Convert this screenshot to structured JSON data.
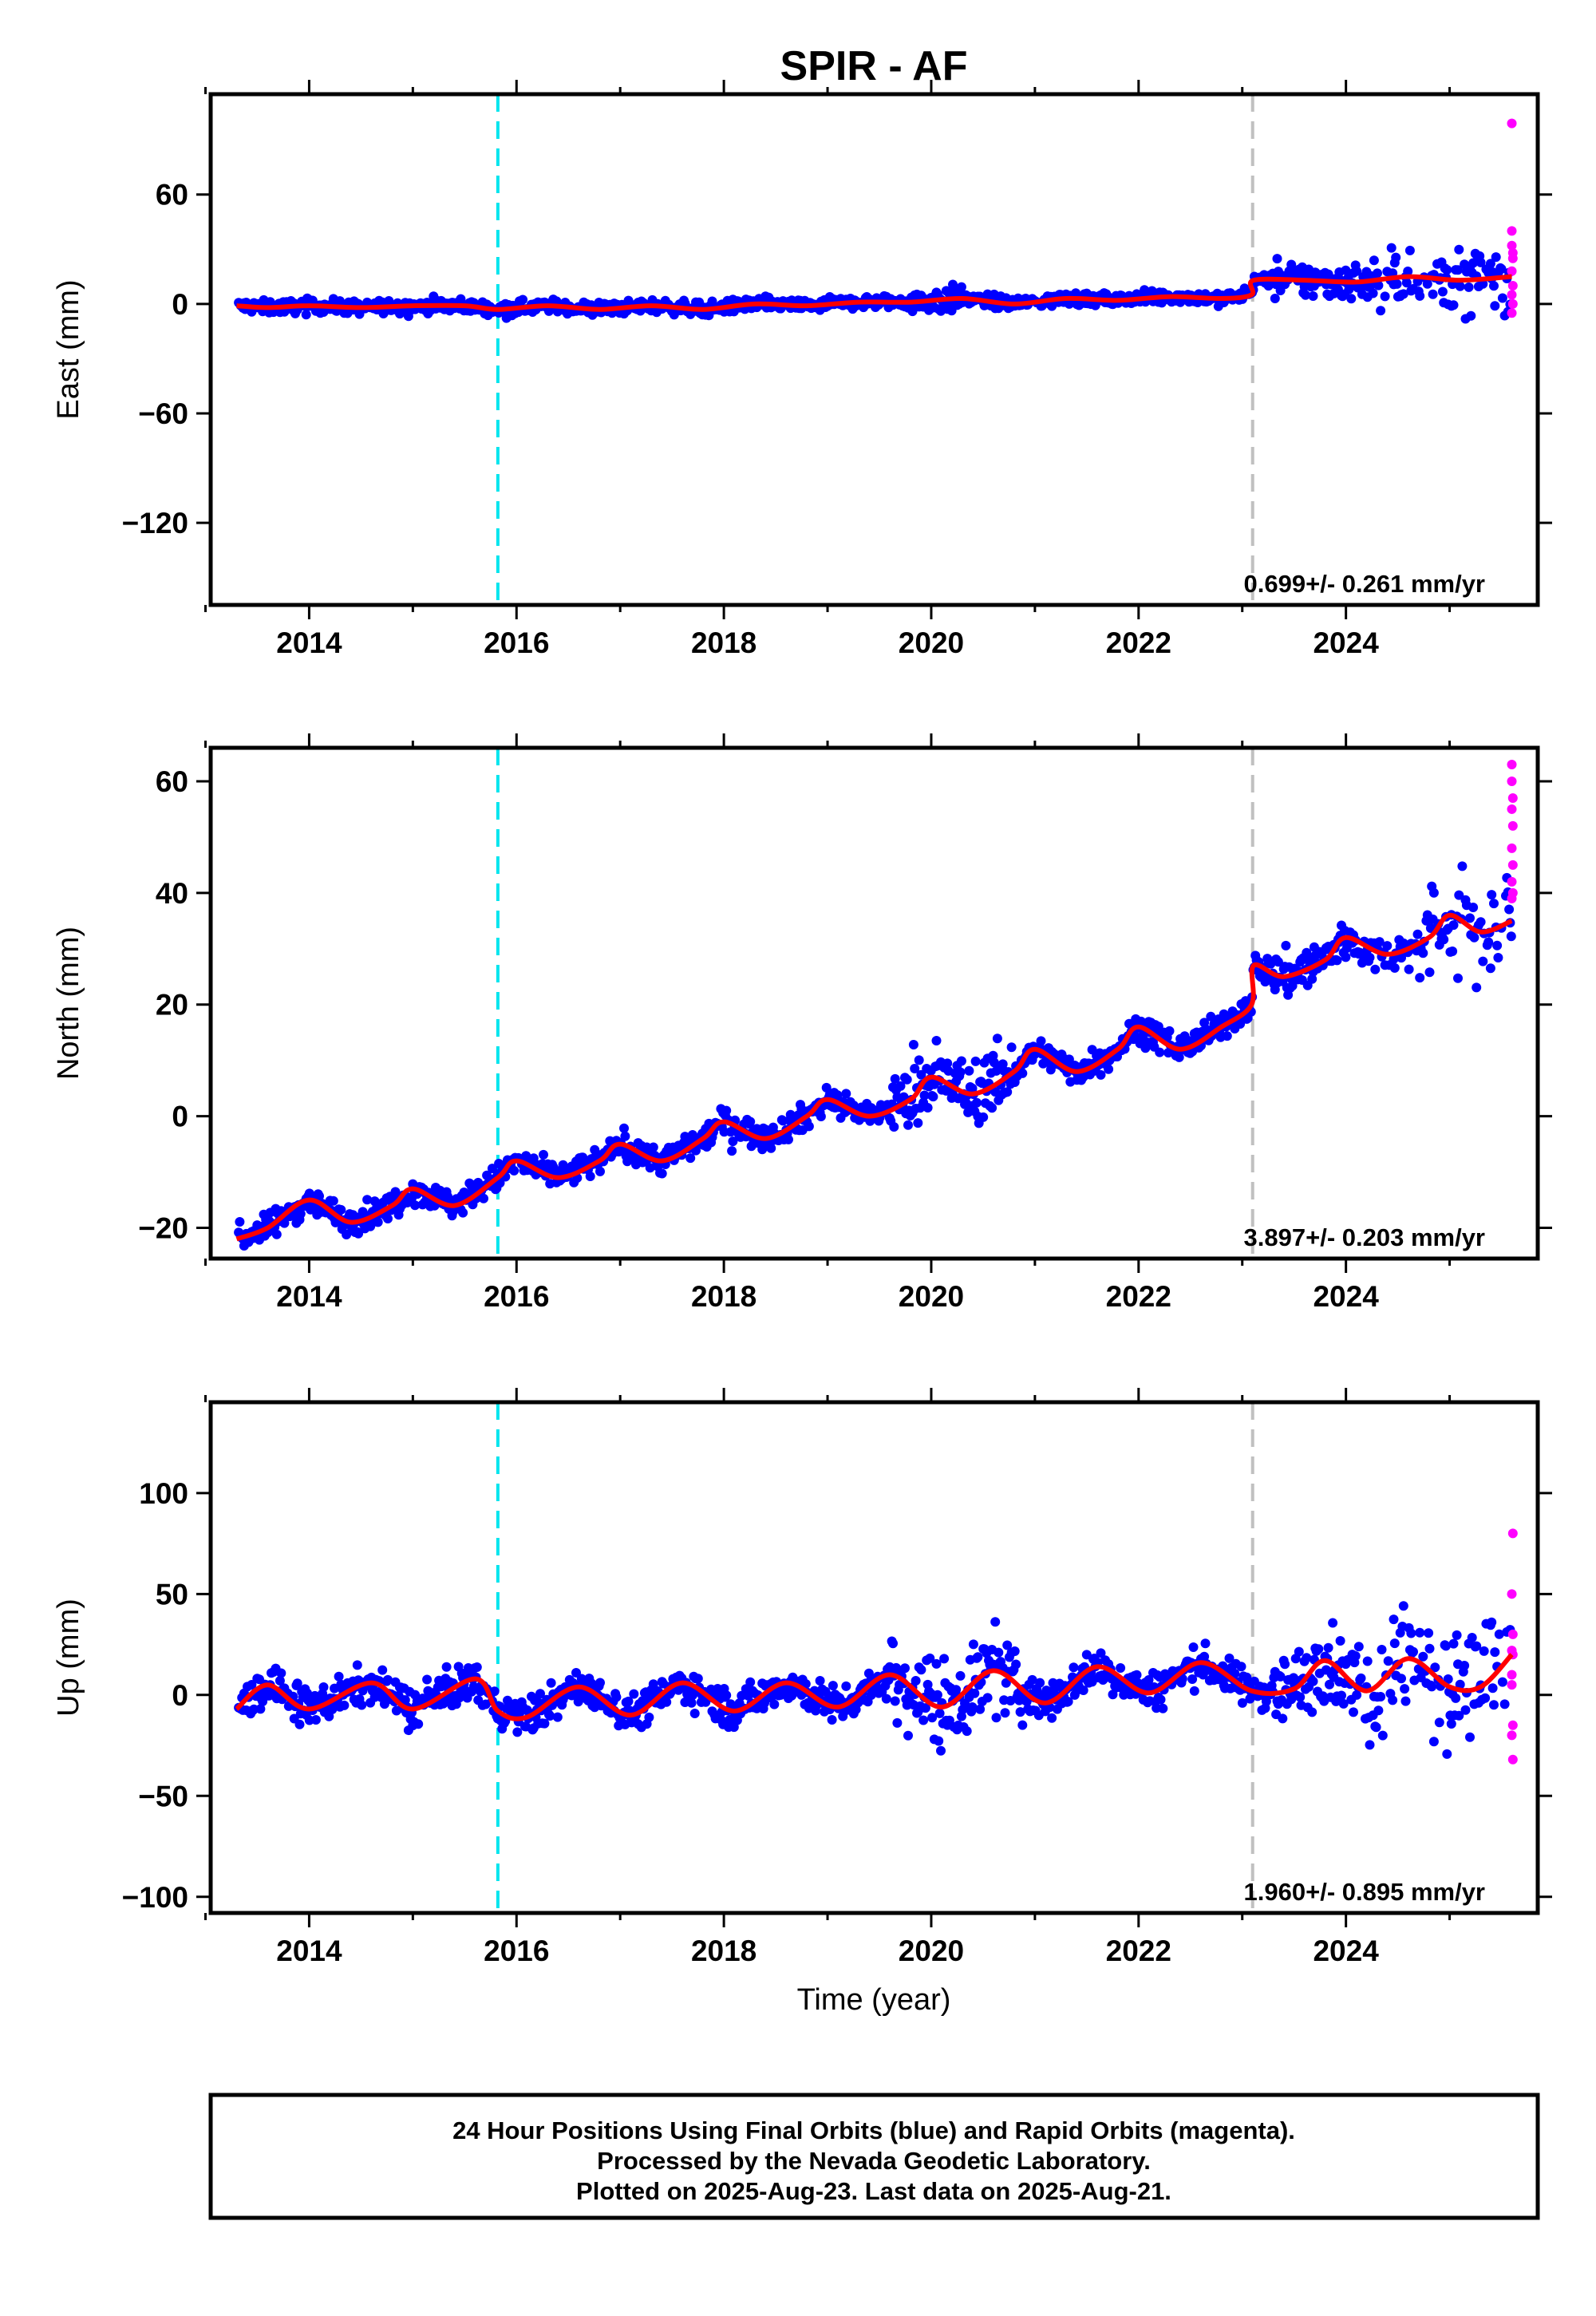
{
  "title": "SPIR - AF",
  "xlabel": "Time (year)",
  "colors": {
    "final": "#0000ff",
    "rapid": "#ff00ff",
    "model": "#ff0000",
    "event_antenna": "#00e5ee",
    "event_equipment": "#c0c0c0"
  },
  "chart_data": [
    {
      "type": "scatter",
      "name": "east",
      "ylabel": "East (mm)",
      "xlim": [
        2013.05,
        2025.85
      ],
      "ylim": [
        -165,
        115
      ],
      "xticks": [
        2014,
        2016,
        2018,
        2020,
        2022,
        2024
      ],
      "yticks": [
        -120,
        -60,
        0,
        60
      ],
      "rate_text": "0.699+/- 0.261 mm/yr",
      "vlines": [
        2015.82,
        2023.1
      ],
      "model_line": [
        [
          2013.3,
          -1
        ],
        [
          2013.6,
          -2
        ],
        [
          2014.0,
          -1
        ],
        [
          2014.5,
          -2
        ],
        [
          2015.0,
          -1
        ],
        [
          2015.5,
          -1
        ],
        [
          2015.82,
          -3
        ],
        [
          2016.3,
          -1
        ],
        [
          2016.8,
          -3
        ],
        [
          2017.3,
          -1
        ],
        [
          2017.8,
          -3
        ],
        [
          2018.3,
          0
        ],
        [
          2018.8,
          -1
        ],
        [
          2019.3,
          1
        ],
        [
          2019.8,
          1
        ],
        [
          2020.3,
          3
        ],
        [
          2020.8,
          0
        ],
        [
          2021.3,
          3
        ],
        [
          2021.8,
          2
        ],
        [
          2022.3,
          4
        ],
        [
          2022.8,
          3
        ],
        [
          2023.09,
          5
        ],
        [
          2023.11,
          13
        ],
        [
          2023.6,
          13
        ],
        [
          2024.1,
          12
        ],
        [
          2024.6,
          15
        ],
        [
          2025.1,
          13
        ],
        [
          2025.6,
          15
        ]
      ],
      "rapid_points": [
        [
          2025.6,
          99
        ],
        [
          2025.6,
          40
        ],
        [
          2025.6,
          32
        ],
        [
          2025.61,
          25
        ],
        [
          2025.6,
          18
        ],
        [
          2025.61,
          10
        ],
        [
          2025.6,
          5
        ],
        [
          2025.61,
          0
        ],
        [
          2025.6,
          -5
        ],
        [
          2025.61,
          28
        ]
      ]
    },
    {
      "type": "scatter",
      "name": "north",
      "ylabel": "North (mm)",
      "xlim": [
        2013.05,
        2025.85
      ],
      "ylim": [
        -25.5,
        66
      ],
      "xticks": [
        2014,
        2016,
        2018,
        2020,
        2022,
        2024
      ],
      "yticks": [
        -20,
        0,
        20,
        40,
        60
      ],
      "rate_text": "3.897+/- 0.203 mm/yr",
      "vlines": [
        2015.82,
        2023.1
      ],
      "model_line": [
        [
          2013.3,
          -22
        ],
        [
          2013.6,
          -20
        ],
        [
          2014.0,
          -15
        ],
        [
          2014.4,
          -19
        ],
        [
          2014.8,
          -16
        ],
        [
          2015.0,
          -13
        ],
        [
          2015.4,
          -16
        ],
        [
          2015.82,
          -11
        ],
        [
          2016.0,
          -8
        ],
        [
          2016.4,
          -11
        ],
        [
          2016.8,
          -8
        ],
        [
          2017.0,
          -5
        ],
        [
          2017.4,
          -8
        ],
        [
          2017.8,
          -4
        ],
        [
          2018.0,
          -1
        ],
        [
          2018.4,
          -4
        ],
        [
          2018.8,
          0
        ],
        [
          2019.0,
          3
        ],
        [
          2019.4,
          0
        ],
        [
          2019.8,
          3
        ],
        [
          2020.0,
          7
        ],
        [
          2020.4,
          4
        ],
        [
          2020.8,
          8
        ],
        [
          2021.0,
          12
        ],
        [
          2021.4,
          8
        ],
        [
          2021.8,
          12
        ],
        [
          2022.0,
          16
        ],
        [
          2022.4,
          12
        ],
        [
          2022.8,
          16
        ],
        [
          2023.09,
          20
        ],
        [
          2023.11,
          27
        ],
        [
          2023.4,
          25
        ],
        [
          2023.8,
          28
        ],
        [
          2024.0,
          32
        ],
        [
          2024.4,
          29
        ],
        [
          2024.8,
          32
        ],
        [
          2025.0,
          36
        ],
        [
          2025.3,
          33
        ],
        [
          2025.6,
          35
        ]
      ],
      "rapid_points": [
        [
          2025.6,
          63
        ],
        [
          2025.6,
          60
        ],
        [
          2025.61,
          57
        ],
        [
          2025.6,
          55
        ],
        [
          2025.61,
          52
        ],
        [
          2025.6,
          48
        ],
        [
          2025.61,
          45
        ],
        [
          2025.6,
          42
        ],
        [
          2025.61,
          40
        ],
        [
          2025.6,
          39
        ]
      ]
    },
    {
      "type": "scatter",
      "name": "up",
      "ylabel": "Up (mm)",
      "xlim": [
        2013.05,
        2025.85
      ],
      "ylim": [
        -108,
        145
      ],
      "xticks": [
        2014,
        2016,
        2018,
        2020,
        2022,
        2024
      ],
      "yticks": [
        -100,
        -50,
        0,
        50,
        100
      ],
      "rate_text": "1.960+/- 0.895 mm/yr",
      "vlines": [
        2015.82,
        2023.1
      ],
      "model_line": [
        [
          2013.3,
          -7
        ],
        [
          2013.6,
          5
        ],
        [
          2014.0,
          -7
        ],
        [
          2014.6,
          6
        ],
        [
          2015.0,
          -7
        ],
        [
          2015.6,
          8
        ],
        [
          2015.82,
          -8
        ],
        [
          2016.1,
          -11
        ],
        [
          2016.6,
          4
        ],
        [
          2017.1,
          -10
        ],
        [
          2017.6,
          6
        ],
        [
          2018.1,
          -8
        ],
        [
          2018.6,
          6
        ],
        [
          2019.1,
          -6
        ],
        [
          2019.6,
          10
        ],
        [
          2020.1,
          -6
        ],
        [
          2020.6,
          12
        ],
        [
          2021.1,
          -4
        ],
        [
          2021.6,
          14
        ],
        [
          2022.1,
          1
        ],
        [
          2022.6,
          16
        ],
        [
          2023.09,
          2
        ],
        [
          2023.5,
          3
        ],
        [
          2023.8,
          17
        ],
        [
          2024.2,
          2
        ],
        [
          2024.6,
          18
        ],
        [
          2025.0,
          4
        ],
        [
          2025.3,
          4
        ],
        [
          2025.6,
          20
        ]
      ],
      "rapid_points": [
        [
          2025.61,
          80
        ],
        [
          2025.6,
          50
        ],
        [
          2025.61,
          30
        ],
        [
          2025.6,
          22
        ],
        [
          2025.61,
          20
        ],
        [
          2025.6,
          10
        ],
        [
          2025.61,
          -15
        ],
        [
          2025.6,
          -20
        ],
        [
          2025.61,
          -32
        ],
        [
          2025.6,
          5
        ]
      ]
    }
  ],
  "footer": {
    "line1": "24 Hour Positions Using Final Orbits (blue) and Rapid Orbits (magenta).",
    "line2": "Processed by the Nevada Geodetic Laboratory.",
    "line3": "Plotted on 2025-Aug-23. Last data on 2025-Aug-21."
  }
}
